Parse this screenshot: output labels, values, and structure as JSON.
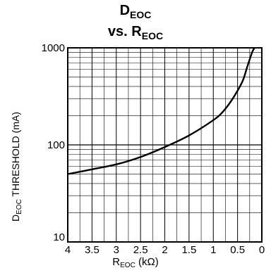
{
  "chart_data": {
    "type": "line",
    "title_main": "D",
    "title_main_sub": "EOC",
    "title_vs": "vs. R",
    "title_vs_sub": "EOC",
    "ylabel_main": "D",
    "ylabel_sub": "EOC",
    "ylabel_rest": " THRESHOLD (mA)",
    "xlabel_main": "R",
    "xlabel_sub": "EOC",
    "xlabel_rest": " (kΩ)",
    "x_scale": "linear-reversed",
    "y_scale": "log",
    "xlim": [
      4,
      0
    ],
    "ylim": [
      10,
      1000
    ],
    "grid": true,
    "x_ticks": [
      4,
      3.5,
      3,
      2.5,
      2,
      1.5,
      1,
      0.5,
      0
    ],
    "x_tick_labels": [
      "4",
      "3.5",
      "3",
      "2.5",
      "2",
      "1.5",
      "1",
      "0.5",
      "0"
    ],
    "y_tick_labels": [
      "10",
      "100",
      "1000"
    ],
    "series": [
      {
        "x": [
          4.0,
          3.5,
          3.0,
          2.5,
          2.0,
          1.5,
          1.0,
          0.8,
          0.6,
          0.4,
          0.3,
          0.2,
          0.15
        ],
        "values": [
          50,
          56,
          63,
          75,
          95,
          125,
          180,
          220,
          300,
          450,
          640,
          900,
          1000
        ]
      }
    ]
  }
}
